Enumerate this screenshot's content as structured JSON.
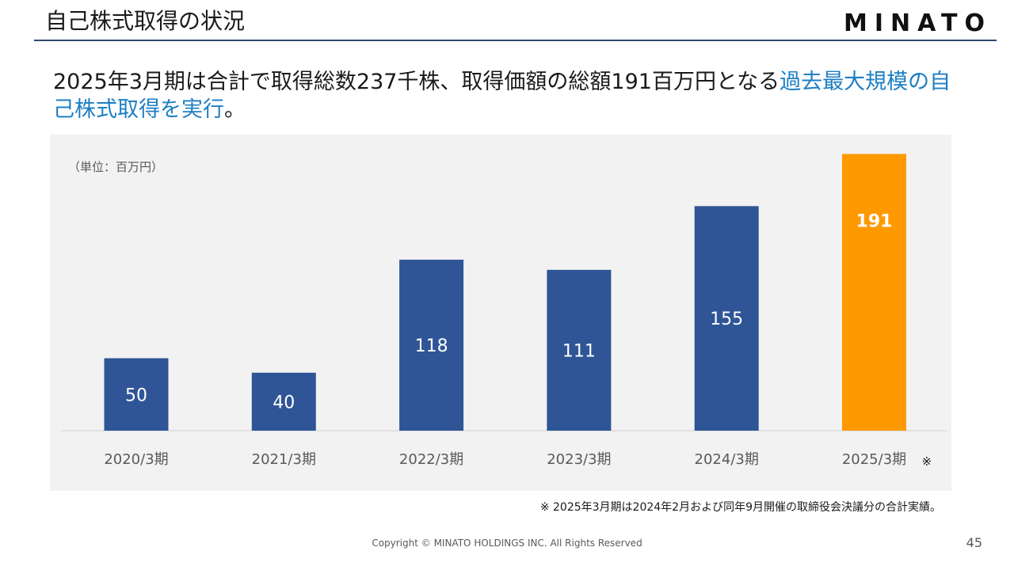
{
  "header": {
    "title": "自己株式取得の状況",
    "logo": "MINATO"
  },
  "headline": {
    "main": "2025年3月期は合計で取得総数237千株、取得価額の総額191百万円となる",
    "highlight": "過去最大規模の自己株式取得を実行",
    "end": "。"
  },
  "colors": {
    "bar_default": "#2f5597",
    "bar_highlight": "#ff9900",
    "headline_highlight": "#1d7fc4",
    "title_rule": "#2e4a6b"
  },
  "chart_data": {
    "type": "bar",
    "unit_label": "（単位：百万円）",
    "categories": [
      "2020/3期",
      "2021/3期",
      "2022/3期",
      "2023/3期",
      "2024/3期",
      "2025/3期"
    ],
    "values": [
      50,
      40,
      118,
      111,
      155,
      191
    ],
    "highlight_index": 5,
    "category_note_mark": "※",
    "ylim": [
      0,
      200
    ],
    "grid": false,
    "legend": "none"
  },
  "footnote": "※ 2025年3月期は2024年2月および同年9月開催の取締役会決議分の合計実績。",
  "footer": {
    "copyright": "Copyright © MINATO HOLDINGS INC. All Rights Reserved",
    "page_number": "45"
  }
}
